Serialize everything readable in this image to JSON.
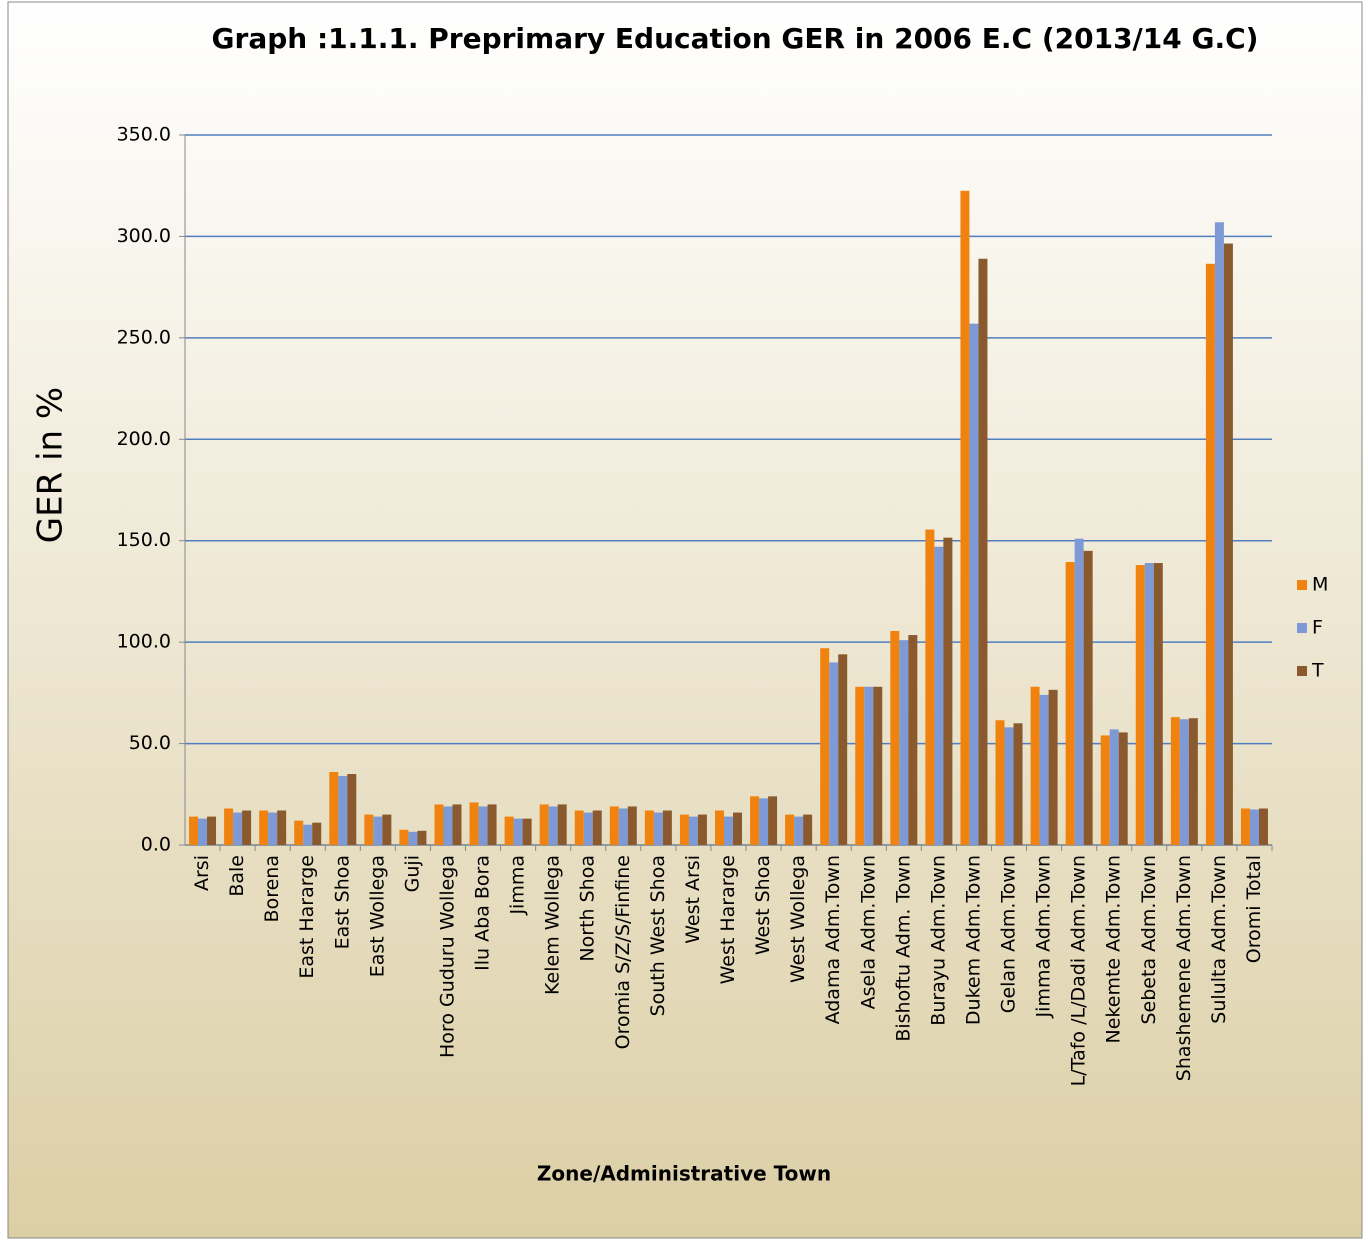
{
  "chart_data": {
    "type": "bar",
    "title": "Graph :1.1.1. Preprimary Education GER in 2006 E.C (2013/14 G.C)",
    "x_label": "Zone/Administrative Town",
    "y_label": "GER  in %",
    "categories": [
      "Arsi",
      "Bale",
      "Borena",
      "East Hararge",
      "East Shoa",
      "East Wollega",
      "Guji",
      "Horo Guduru Wollega",
      "Ilu Aba Bora",
      "Jimma",
      "Kelem Wollega",
      "North Shoa",
      "Oromia S/Z/S/Finfine",
      "South West Shoa",
      "West Arsi",
      "West Hararge",
      "West Shoa",
      "West Wollega",
      "Adama Adm.Town",
      "Asela  Adm.Town",
      "Bishoftu Adm. Town",
      "Burayu Adm.Town",
      "Dukem Adm.Town",
      "Gelan Adm.Town",
      "Jimma Adm.Town",
      "L/Tafo /L/Dadi Adm.Town",
      "Nekemte Adm.Town",
      "Sebeta Adm.Town",
      "Shashemene Adm.Town",
      "Sululta Adm.Town",
      "Oromi Total"
    ],
    "series": [
      {
        "name": "M",
        "color": "#f0830f",
        "values": [
          14,
          18,
          17,
          12,
          36,
          15,
          7.5,
          20,
          21,
          14,
          20,
          17,
          19,
          17,
          15,
          17,
          24,
          15,
          97,
          78,
          105.5,
          155.5,
          322.5,
          61.5,
          78,
          139.5,
          54,
          138,
          63,
          286.5,
          18
        ]
      },
      {
        "name": "F",
        "color": "#7d9ad6",
        "values": [
          13,
          16,
          16,
          10,
          34,
          14,
          6.5,
          19,
          19,
          13,
          19,
          16,
          18,
          16,
          14,
          14,
          23,
          14,
          90,
          78,
          101,
          147,
          257,
          58,
          74,
          151,
          57,
          139,
          62,
          307,
          17.5
        ]
      },
      {
        "name": "T",
        "color": "#8a5a2e",
        "values": [
          14,
          17,
          17,
          11,
          35,
          15,
          7,
          20,
          20,
          13,
          20,
          17,
          19,
          17,
          15,
          16,
          24,
          15,
          94,
          78,
          103.5,
          151.5,
          289,
          60,
          76.5,
          145,
          55.5,
          139,
          62.5,
          296.5,
          18
        ]
      }
    ],
    "ylim": [
      0,
      350
    ],
    "yticks": [
      {
        "value": 0,
        "label": "0.0"
      },
      {
        "value": 50,
        "label": "50.0"
      },
      {
        "value": 100,
        "label": "100.0"
      },
      {
        "value": 150,
        "label": "150.0"
      },
      {
        "value": 200,
        "label": "200.0"
      },
      {
        "value": 250,
        "label": "250.0"
      },
      {
        "value": 300,
        "label": "300.0"
      },
      {
        "value": 350,
        "label": "350.0"
      }
    ],
    "grid": true,
    "legend": "right"
  }
}
